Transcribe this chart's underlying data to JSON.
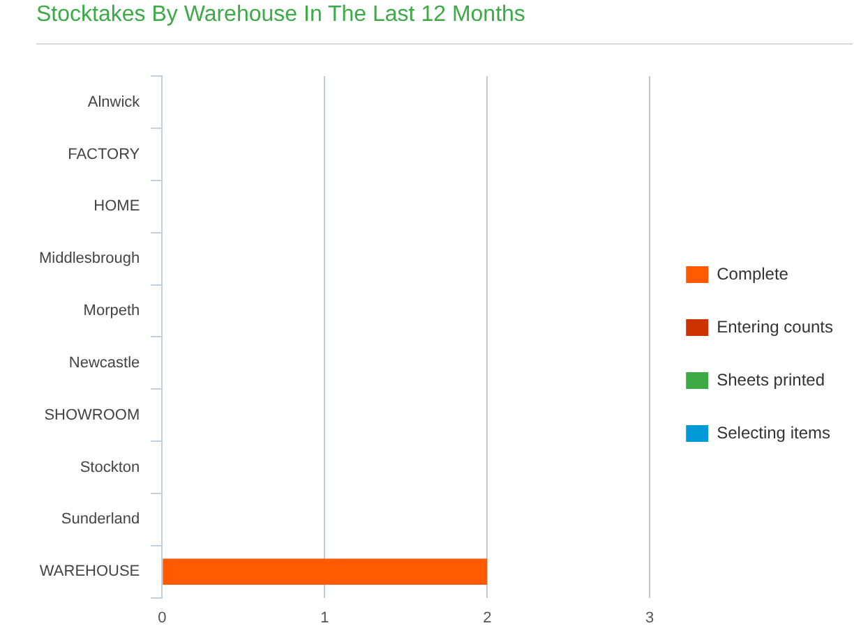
{
  "chart_data": {
    "type": "bar",
    "orientation": "horizontal",
    "stacked": true,
    "title": "Stocktakes By Warehouse In The Last 12 Months",
    "categories": [
      "Alnwick",
      "FACTORY",
      "HOME",
      "Middlesbrough",
      "Morpeth",
      "Newcastle",
      "SHOWROOM",
      "Stockton",
      "Sunderland",
      "WAREHOUSE"
    ],
    "series": [
      {
        "name": "Complete",
        "color": "#ff5a00",
        "values": [
          0,
          0,
          0,
          0,
          0,
          0,
          0,
          0,
          0,
          2
        ]
      },
      {
        "name": "Entering counts",
        "color": "#cc3300",
        "values": [
          0,
          0,
          0,
          0,
          0,
          0,
          0,
          0,
          0,
          0
        ]
      },
      {
        "name": "Sheets printed",
        "color": "#3daa47",
        "values": [
          0,
          0,
          0,
          0,
          0,
          0,
          0,
          0,
          0,
          0
        ]
      },
      {
        "name": "Selecting items",
        "color": "#0099d8",
        "values": [
          0,
          0,
          0,
          0,
          0,
          0,
          0,
          0,
          0,
          0
        ]
      }
    ],
    "xlim": [
      0,
      3
    ],
    "xticks": [
      0,
      1,
      2,
      3
    ],
    "grid": "x",
    "legend": "right"
  }
}
